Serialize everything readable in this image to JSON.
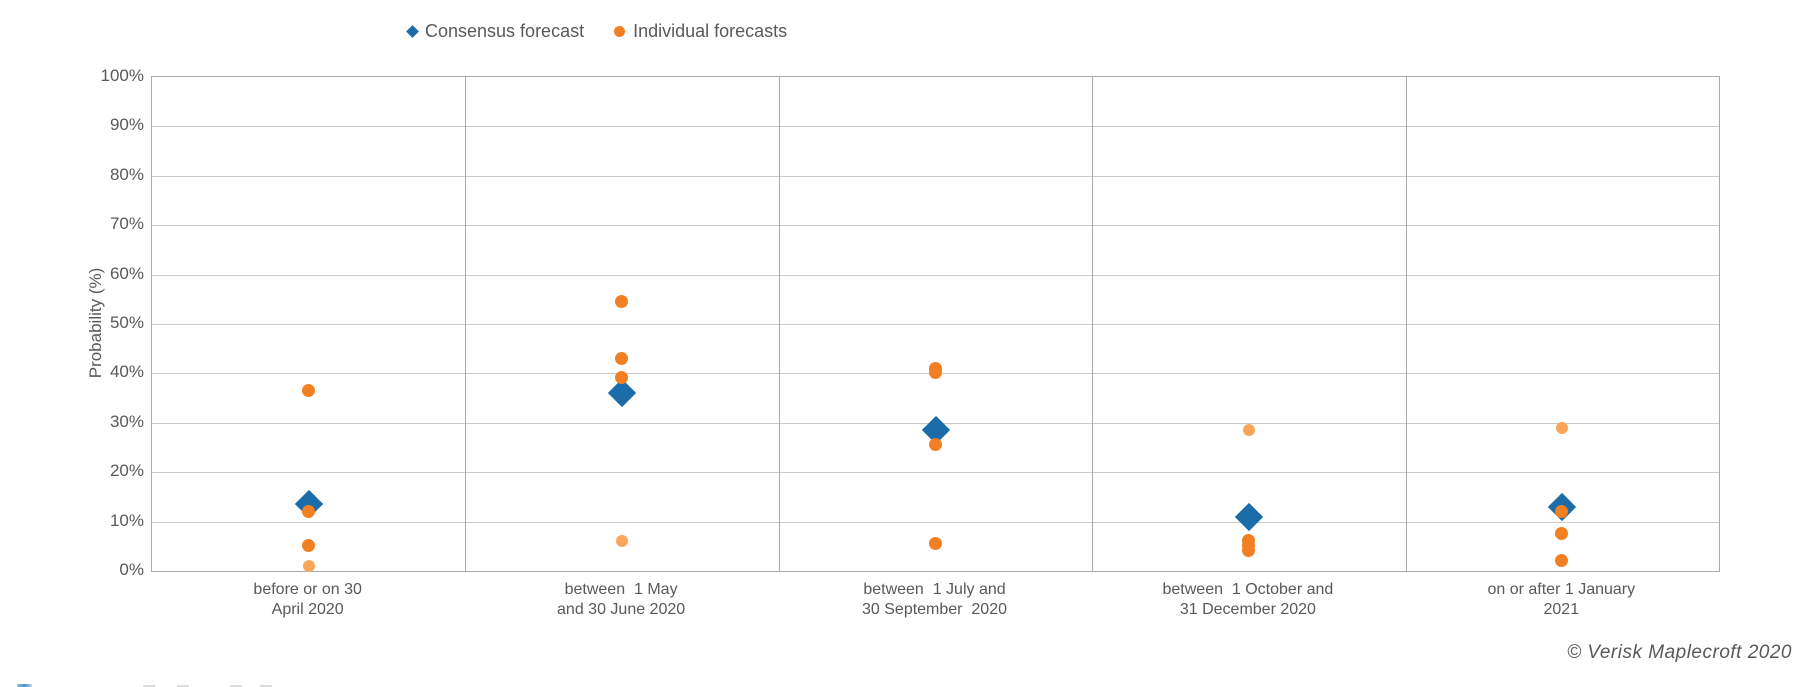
{
  "chart": {
    "y_ticks": [
      "100%",
      "90%",
      "80%",
      "70%",
      "60%",
      "50%",
      "40%",
      "30%",
      "20%",
      "10%",
      "0%"
    ]
  },
  "chart_data": {
    "type": "scatter",
    "title": "",
    "xlabel": "",
    "ylabel": "Probability (%)",
    "ylim": [
      0,
      100
    ],
    "ytick_step": 10,
    "grid": true,
    "legend_position": "top",
    "annotation": "© Verisk Maplecroft 2020",
    "categories": [
      "before or on 30\nApril 2020",
      "between  1 May\nand 30 June 2020",
      "between  1 July and\n30 September  2020",
      "between  1 October and\n31 December 2020",
      "on or after 1 January\n2021"
    ],
    "series": [
      {
        "name": "Consensus forecast",
        "marker": "diamond",
        "color": "#1b6ca8",
        "values_pct": [
          [
            13.6
          ],
          [
            36
          ],
          [
            28.5
          ],
          [
            11
          ],
          [
            13
          ]
        ]
      },
      {
        "name": "Individual forecasts",
        "marker": "circle",
        "color": "#f28022",
        "color_light": "#f9a65a",
        "values_pct": [
          [
            36.5,
            12,
            5,
            {
              "v": 1,
              "light": true
            }
          ],
          [
            54.5,
            43,
            39,
            {
              "v": 6,
              "light": true
            }
          ],
          [
            41,
            40,
            25.5,
            5.5
          ],
          [
            {
              "v": 28.5,
              "light": true
            },
            6,
            5,
            4
          ],
          [
            {
              "v": 29,
              "light": true
            },
            12,
            7.5,
            2
          ]
        ]
      }
    ]
  }
}
